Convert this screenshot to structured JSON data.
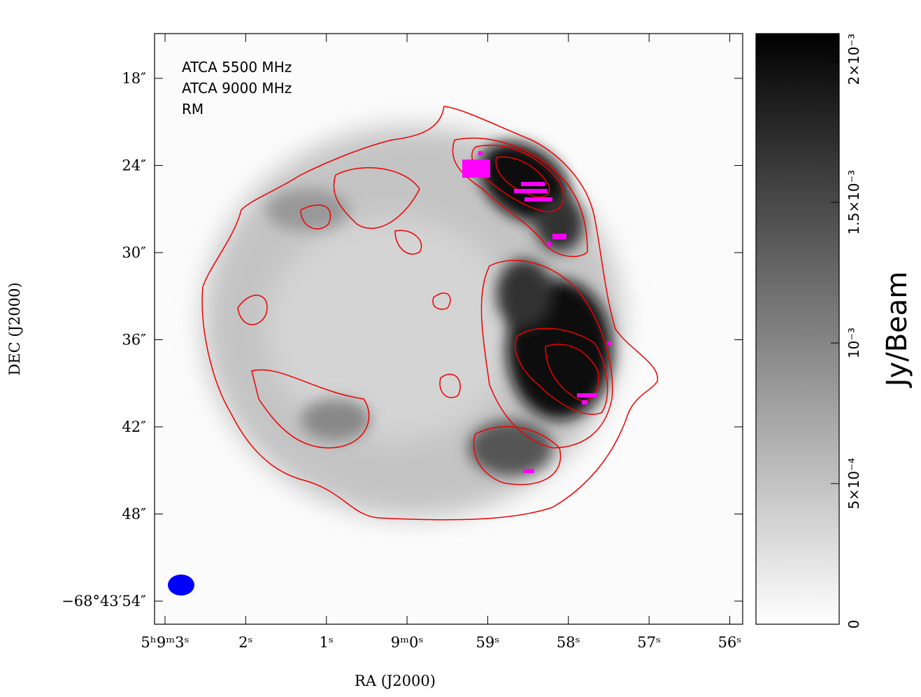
{
  "chart_data": {
    "type": "image",
    "annotations": [
      "ATCA 5500 MHz",
      "ATCA 9000 MHz",
      "RM"
    ],
    "xlabel": "RA (J2000)",
    "ylabel": "DEC (J2000)",
    "xlim": [
      3.13,
      -4.16
    ],
    "xticks": [
      {
        "value": 3,
        "label": "5ʰ9ᵐ3ˢ"
      },
      {
        "value": 2,
        "label": "2ˢ"
      },
      {
        "value": 1,
        "label": "1ˢ"
      },
      {
        "value": 0,
        "label": "9ᵐ0ˢ"
      },
      {
        "value": -1,
        "label": "59ˢ"
      },
      {
        "value": -2,
        "label": "58ˢ"
      },
      {
        "value": -3,
        "label": "57ˢ"
      },
      {
        "value": -4,
        "label": "56ˢ"
      }
    ],
    "ylim": [
      14.92,
      55.59
    ],
    "yticks": [
      {
        "value": 18,
        "label": "18″"
      },
      {
        "value": 24,
        "label": "24″"
      },
      {
        "value": 30,
        "label": "30″"
      },
      {
        "value": 36,
        "label": "36″"
      },
      {
        "value": 42,
        "label": "42″"
      },
      {
        "value": 48,
        "label": "48″"
      },
      {
        "value": 54,
        "label": "−68°43′54″"
      }
    ],
    "colorbar": {
      "label": "Jy/Beam",
      "lim": [
        0,
        0.0021
      ],
      "ticks": [
        0,
        {
          "value": 0.0005,
          "label": "5×10⁻⁴"
        },
        {
          "value": 0.001,
          "label": "10⁻³"
        },
        {
          "value": 0.0015,
          "label": "1.5×10⁻³"
        },
        {
          "value": 0.002,
          "label": "2×10⁻³"
        }
      ]
    }
  }
}
